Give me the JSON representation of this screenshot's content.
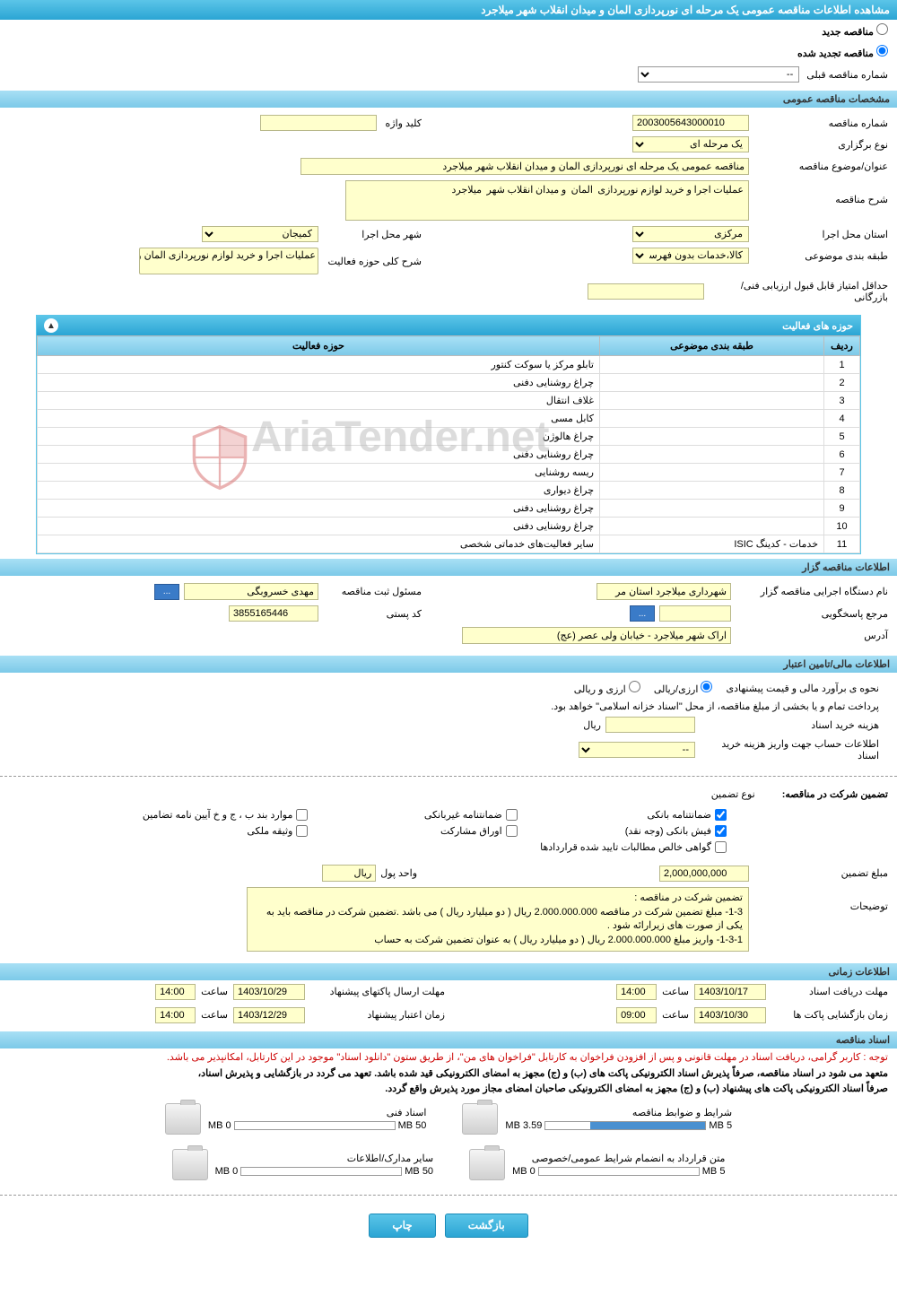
{
  "header": {
    "title": "مشاهده اطلاعات مناقصه عمومی یک مرحله ای نورپردازی المان و میدان انقلاب شهر میلاجرد"
  },
  "radios": {
    "new_tender": "مناقصه جدید",
    "renewed_tender": "مناقصه تجدید شده"
  },
  "prev_tender": {
    "label": "شماره مناقصه قبلی",
    "value": "--"
  },
  "sections": {
    "general_specs": "مشخصات مناقصه عمومی",
    "activity_fields": "حوزه های فعالیت",
    "tender_org": "اطلاعات مناقصه گزار",
    "financial": "اطلاعات مالی/تامین اعتبار",
    "timing": "اطلاعات زمانی",
    "tender_docs": "اسناد مناقصه"
  },
  "general": {
    "tender_no_label": "شماره مناقصه",
    "tender_no": "2003005643000010",
    "type_label": "نوع برگزاری",
    "type": "یک مرحله ای",
    "subject_label": "عنوان/موضوع مناقصه",
    "subject": "مناقصه عمومی یک مرحله ای  نورپردازی  المان  و میدان انقلاب شهر  میلاجرد",
    "desc_label": "شرح مناقصه",
    "desc": "عملیات اجرا و خرید لوازم نورپردازی  المان  و میدان انقلاب شهر  میلاجرد",
    "province_label": "استان محل اجرا",
    "province": "مرکزی",
    "city_label": "شهر محل اجرا",
    "city": "کمیجان",
    "category_label": "طبقه بندی موضوعی",
    "category": "کالا،خدمات بدون فهرست ب",
    "summary_label": "شرح کلی حوزه فعالیت",
    "summary": "عملیات اجرا و خرید لوازم نورپردازی  المان  و میدان",
    "min_score_label": "حداقل امتیاز قابل قبول ارزیابی فنی/بازرگانی",
    "keyword_label": "کلید واژه"
  },
  "activity": {
    "col_row": "ردیف",
    "col_category": "طبقه بندی موضوعی",
    "col_field": "حوزه فعالیت",
    "rows": [
      {
        "idx": "1",
        "cat": "",
        "field": "تابلو مرکز یا سوکت کنتور"
      },
      {
        "idx": "2",
        "cat": "",
        "field": "چراغ روشنایی دفنی"
      },
      {
        "idx": "3",
        "cat": "",
        "field": "غلاف انتقال"
      },
      {
        "idx": "4",
        "cat": "",
        "field": "کابل مسی"
      },
      {
        "idx": "5",
        "cat": "",
        "field": "چراغ هالوژن"
      },
      {
        "idx": "6",
        "cat": "",
        "field": "چراغ روشنایی دفنی"
      },
      {
        "idx": "7",
        "cat": "",
        "field": "ریسه روشنایی"
      },
      {
        "idx": "8",
        "cat": "",
        "field": "چراغ دیواری"
      },
      {
        "idx": "9",
        "cat": "",
        "field": "چراغ روشنایی دفنی"
      },
      {
        "idx": "10",
        "cat": "",
        "field": "چراغ روشنایی دفنی"
      },
      {
        "idx": "11",
        "cat": "خدمات - کدینگ ISIC",
        "field": "سایر فعالیت‌های خدماتی شخصی"
      }
    ]
  },
  "org": {
    "exec_label": "نام دستگاه اجرایی مناقصه گزار",
    "exec": "شهرداری میلاجرد استان مر",
    "reg_officer_label": "مسئول ثبت مناقصه",
    "reg_officer": "مهدی خسروبگی",
    "reply_ref_label": "مرجع پاسخگویی",
    "reply_ref": "",
    "postal_label": "کد پستی",
    "postal": "3855165446",
    "address_label": "آدرس",
    "address": "اراک شهر میلاجرد - خیابان ولی عصر (عج)",
    "dots": "..."
  },
  "financial": {
    "estimate_label": "نحوه ی برآورد مالی و قیمت پیشنهادی",
    "opt_rial": "ارزی/ریالی",
    "opt_both": "ارزی و ریالی",
    "payment_note": "پرداخت تمام و یا بخشی از مبلغ مناقصه، از محل \"اسناد خزانه اسلامی\" خواهد بود.",
    "doc_fee_label": "هزینه خرید اسناد",
    "rial": "ریال",
    "deposit_account_label": "اطلاعات حساب جهت واریز هزینه خرید اسناد",
    "deposit_account": "--"
  },
  "guarantee": {
    "participate_label": "تضمین شرکت در مناقصه:",
    "type_label": "نوع تضمین",
    "opt_bank": "ضمانتنامه بانکی",
    "opt_nonbank": "ضمانتنامه غیربانکی",
    "opt_bylaw": "موارد بند ب ، ج و خ آیین نامه تضامین",
    "opt_fish": "فیش بانکی (وجه نقد)",
    "opt_bonds": "اوراق مشارکت",
    "opt_property": "وثیقه ملکی",
    "opt_receivables": "گواهی خالص مطالبات تایید شده قراردادها",
    "amount_label": "مبلغ تضمین",
    "amount": "2,000,000,000",
    "unit_label": "واحد پول",
    "unit": "ریال",
    "desc_label": "توضیحات",
    "desc_line1": "تضمین شرکت در مناقصه :",
    "desc_line2": "1-3- مبلغ تضمین شرکت در مناقصه 2.000.000.000 ریال ( دو میلیارد ریال ) می باشد .تضمین شرکت در مناقصه باید به یکی از صورت های زیرارائه شود .",
    "desc_line3": "1-3-1- واریز مبلغ 2.000.000.000 ریال ( دو میلیارد ریال ) به عنوان تضمین شرکت به حساب"
  },
  "timing": {
    "receive_deadline_label": "مهلت دریافت اسناد",
    "receive_date": "1403/10/17",
    "receive_time": "14:00",
    "send_deadline_label": "مهلت ارسال پاکتهای پیشنهاد",
    "send_date": "1403/10/29",
    "send_time": "14:00",
    "open_label": "زمان بازگشایی پاکت ها",
    "open_date": "1403/10/30",
    "open_time": "09:00",
    "validity_label": "زمان اعتبار پیشنهاد",
    "validity_date": "1403/12/29",
    "validity_time": "14:00",
    "time_label": "ساعت"
  },
  "docs": {
    "note1": "توجه : کاربر گرامی، دریافت اسناد در مهلت قانونی و پس از افزودن فراخوان به کارتابل \"فراخوان های من\"، از طریق ستون \"دانلود اسناد\" موجود در این کارتابل، امکانپذیر می باشد.",
    "note2": "متعهد می شود در اسناد مناقصه، صرفاً پذیرش اسناد الکترونیکی پاکت های (ب) و (ج) مجهز به امضای الکترونیکی قید شده باشد. تعهد می گردد در بازگشایی و پذیرش اسناد،",
    "note3": "صرفاً اسناد الکترونیکی پاکت های پیشنهاد (ب) و (ج) مجهز به امضای الکترونیکی صاحبان امضای مجاز مورد پذیرش واقع گردد.",
    "items": [
      {
        "title": "شرایط و ضوابط مناقصه",
        "used": "3.59 MB",
        "total": "5 MB",
        "pct": 72
      },
      {
        "title": "اسناد فنی",
        "used": "0 MB",
        "total": "50 MB",
        "pct": 0
      },
      {
        "title": "متن قرارداد به انضمام شرایط عمومی/خصوصی",
        "used": "0 MB",
        "total": "5 MB",
        "pct": 0
      },
      {
        "title": "سایر مدارک/اطلاعات",
        "used": "0 MB",
        "total": "50 MB",
        "pct": 0
      }
    ]
  },
  "buttons": {
    "back": "بازگشت",
    "print": "چاپ"
  }
}
